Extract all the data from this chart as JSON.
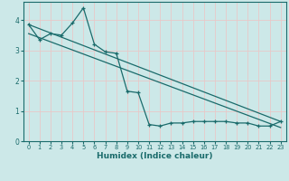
{
  "xlabel": "Humidex (Indice chaleur)",
  "ylabel": "",
  "bg_color": "#cce8e8",
  "grid_color": "#e8c8c8",
  "line_color": "#1a6b6b",
  "xlim": [
    -0.5,
    23.5
  ],
  "ylim": [
    0,
    4.6
  ],
  "xticks": [
    0,
    1,
    2,
    3,
    4,
    5,
    6,
    7,
    8,
    9,
    10,
    11,
    12,
    13,
    14,
    15,
    16,
    17,
    18,
    19,
    20,
    21,
    22,
    23
  ],
  "yticks": [
    0,
    1,
    2,
    3,
    4
  ],
  "line1_x": [
    0,
    1,
    2,
    3,
    4,
    5,
    6,
    7,
    8,
    9,
    10,
    11,
    12,
    13,
    14,
    15,
    16,
    17,
    18,
    19,
    20,
    21,
    22,
    23
  ],
  "line1_y": [
    3.85,
    3.35,
    3.55,
    3.5,
    3.9,
    4.4,
    3.2,
    2.95,
    2.9,
    1.65,
    1.6,
    0.55,
    0.5,
    0.6,
    0.6,
    0.65,
    0.65,
    0.65,
    0.65,
    0.6,
    0.6,
    0.5,
    0.5,
    0.65
  ],
  "line2_x": [
    0,
    23
  ],
  "line2_y": [
    3.85,
    0.65
  ],
  "line3_x": [
    0,
    23
  ],
  "line3_y": [
    3.55,
    0.45
  ]
}
